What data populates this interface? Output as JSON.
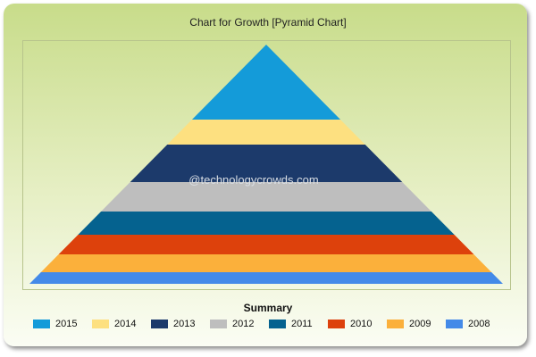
{
  "chart_data": {
    "type": "pyramid",
    "title": "Chart for Growth [Pyramid Chart]",
    "watermark": "@technologycrowds.com",
    "legend_title": "Summary",
    "legend_placement": "bottom",
    "categories": [
      "2015",
      "2014",
      "2013",
      "2012",
      "2011",
      "2010",
      "2009",
      "2008"
    ],
    "values": [
      84,
      28,
      42,
      33,
      26,
      22,
      20,
      13
    ],
    "colors": [
      "#149bd9",
      "#fde080",
      "#1c3a6b",
      "#bebebe",
      "#05628f",
      "#dd410c",
      "#fbb03b",
      "#448ae8"
    ]
  }
}
